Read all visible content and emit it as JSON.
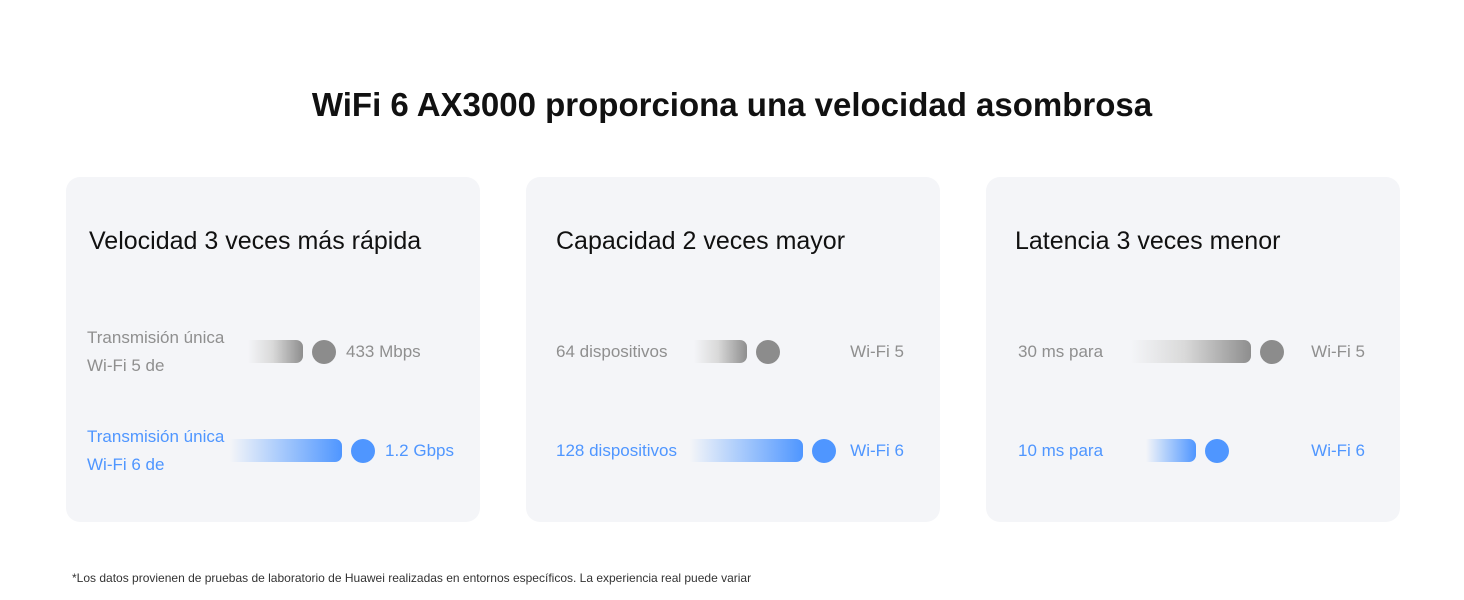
{
  "title": "WiFi 6 AX3000 proporciona una velocidad asombrosa",
  "colors": {
    "gray": "#8f8f8f",
    "blue": "#4f96ff",
    "card_bg": "#f4f5f8"
  },
  "cards": [
    {
      "title": "Velocidad 3 veces más rápida",
      "rows": [
        {
          "label_line1": "Transmisión única",
          "label_line2": "Wi-Fi 5 de",
          "value": "433 Mbps"
        },
        {
          "label_line1": "Transmisión única",
          "label_line2": "Wi-Fi 6 de",
          "value": "1.2 Gbps"
        }
      ]
    },
    {
      "title": "Capacidad 2 veces mayor",
      "rows": [
        {
          "label": "64 dispositivos",
          "value": "Wi-Fi 5"
        },
        {
          "label": "128 dispositivos",
          "value": "Wi-Fi 6"
        }
      ]
    },
    {
      "title": "Latencia 3 veces menor",
      "rows": [
        {
          "label": "30 ms para",
          "value": "Wi-Fi 5"
        },
        {
          "label": "10 ms para",
          "value": "Wi-Fi 6"
        }
      ]
    }
  ],
  "footnote": "*Los datos provienen de pruebas de laboratorio de Huawei realizadas en entornos específicos. La experiencia real puede variar"
}
